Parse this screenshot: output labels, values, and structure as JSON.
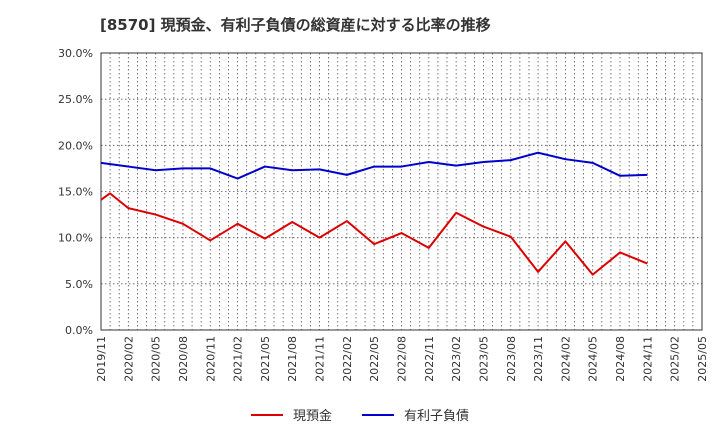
{
  "chart_data": {
    "type": "line",
    "title": "[8570]  現預金、有利子負債の総資産に対する比率の推移",
    "xlabel": "",
    "ylabel": "",
    "ylim": [
      0,
      30
    ],
    "yticks": [
      "0.0%",
      "5.0%",
      "10.0%",
      "15.0%",
      "20.0%",
      "25.0%",
      "30.0%"
    ],
    "ytick_values": [
      0,
      5,
      10,
      15,
      20,
      25,
      30
    ],
    "categories": [
      "2019/11",
      "2020/02",
      "2020/05",
      "2020/08",
      "2020/11",
      "2021/02",
      "2021/05",
      "2021/08",
      "2021/11",
      "2022/02",
      "2022/05",
      "2022/08",
      "2022/11",
      "2023/02",
      "2023/05",
      "2023/08",
      "2023/11",
      "2024/02",
      "2024/05",
      "2024/08",
      "2024/11",
      "2025/02",
      "2025/05"
    ],
    "series": [
      {
        "name": "現預金",
        "color": "#dd0000",
        "x": [
          0,
          0.33,
          1,
          2,
          3,
          4,
          5,
          6,
          7,
          8,
          9,
          10,
          11,
          12,
          13,
          14,
          15,
          16,
          17,
          18,
          19,
          20
        ],
        "values": [
          14.1,
          14.8,
          13.2,
          12.5,
          11.5,
          9.7,
          11.5,
          9.9,
          11.7,
          10.0,
          11.8,
          9.3,
          10.5,
          8.9,
          12.7,
          11.2,
          10.1,
          6.3,
          9.6,
          6.0,
          8.4,
          7.2
        ]
      },
      {
        "name": "有利子負債",
        "color": "#0000cc",
        "x": [
          0,
          1,
          2,
          3,
          4,
          5,
          6,
          7,
          8,
          9,
          10,
          11,
          12,
          13,
          14,
          15,
          16,
          17,
          18,
          19,
          20
        ],
        "values": [
          18.1,
          17.7,
          17.3,
          17.5,
          17.5,
          16.4,
          17.7,
          17.3,
          17.4,
          16.8,
          17.7,
          17.7,
          18.2,
          17.8,
          18.2,
          18.4,
          19.2,
          18.5,
          18.1,
          16.7,
          16.8
        ]
      }
    ],
    "grid": true,
    "legend_position": "bottom-center"
  }
}
